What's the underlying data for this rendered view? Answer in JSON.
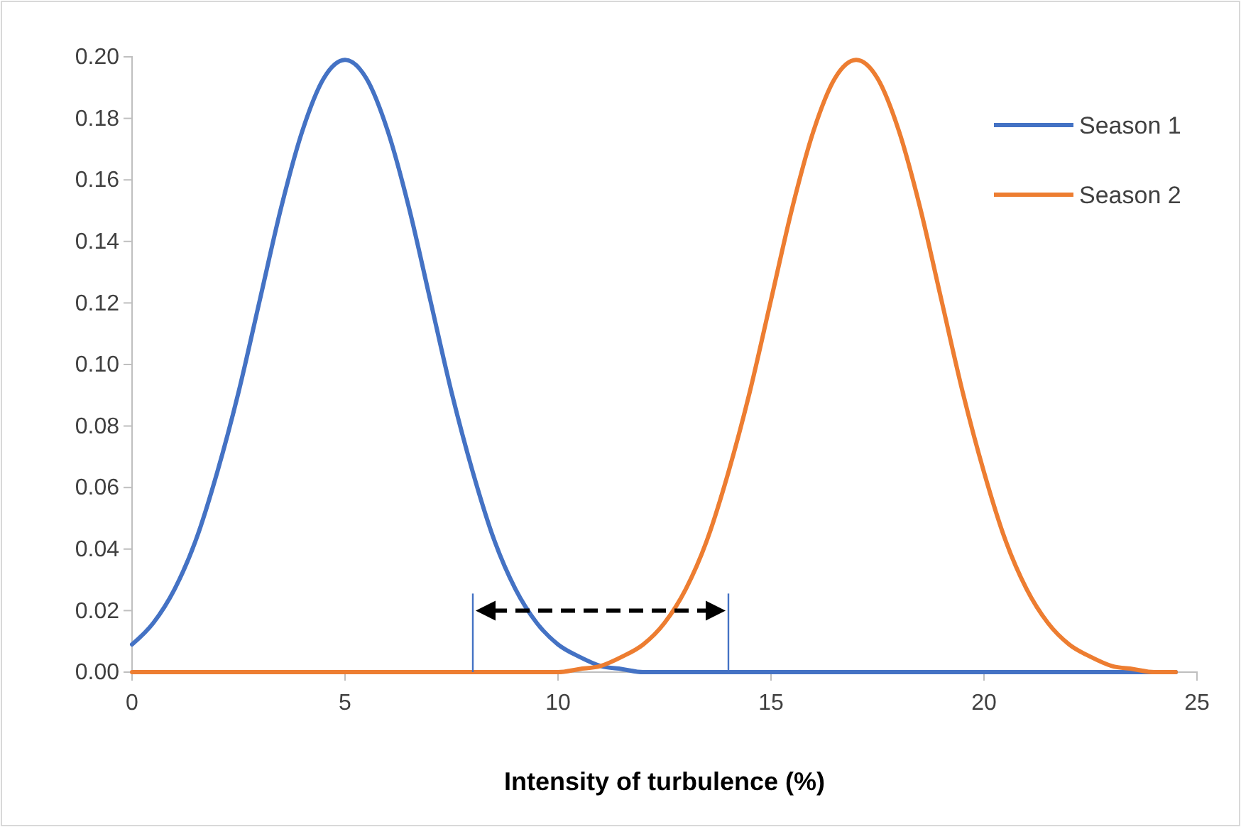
{
  "chart_data": {
    "type": "line",
    "xlabel": "Intensity of turbulence (%)",
    "xlim": [
      0,
      25
    ],
    "xticks": [
      0,
      5,
      10,
      15,
      20,
      25
    ],
    "ylim": [
      0,
      0.2
    ],
    "yticks": [
      {
        "value": 0,
        "label": "0.00"
      },
      {
        "value": 0.02,
        "label": "0.02"
      },
      {
        "value": 0.04,
        "label": "0.04"
      },
      {
        "value": 0.06,
        "label": "0.06"
      },
      {
        "value": 0.08,
        "label": "0.08"
      },
      {
        "value": 0.1,
        "label": "0.10"
      },
      {
        "value": 0.12,
        "label": "0.12"
      },
      {
        "value": 0.14,
        "label": "0.14"
      },
      {
        "value": 0.16,
        "label": "0.16"
      },
      {
        "value": 0.18,
        "label": "0.18"
      },
      {
        "value": 0.2,
        "label": "0.20"
      }
    ],
    "grid": false,
    "legend": "top right",
    "marker": "none",
    "line_style": "solid",
    "ref_lines": [
      {
        "axis": "x",
        "value": 8,
        "color": "#4472c4"
      },
      {
        "axis": "x",
        "value": 14,
        "color": "#4472c4"
      }
    ],
    "series": [
      {
        "name": "Season 1",
        "color": "#4472c4",
        "x": [
          0,
          0.5,
          1,
          1.5,
          2,
          2.5,
          3,
          3.5,
          4,
          4.5,
          5,
          5.5,
          6,
          6.5,
          7,
          7.5,
          8,
          8.5,
          9,
          9.5,
          10,
          10.5,
          11,
          11.5,
          12,
          15,
          20,
          24.5
        ],
        "values": [
          0.009,
          0.016,
          0.027,
          0.043,
          0.065,
          0.091,
          0.121,
          0.151,
          0.176,
          0.193,
          0.199,
          0.193,
          0.176,
          0.151,
          0.121,
          0.091,
          0.065,
          0.043,
          0.027,
          0.016,
          0.009,
          0.005,
          0.002,
          0.001,
          0,
          0,
          0,
          0
        ]
      },
      {
        "name": "Season 2",
        "color": "#ed7d31",
        "x": [
          0,
          5,
          10,
          10.5,
          11,
          11.5,
          12,
          12.5,
          13,
          13.5,
          14,
          14.5,
          15,
          15.5,
          16,
          16.5,
          17,
          17.5,
          18,
          18.5,
          19,
          19.5,
          20,
          20.5,
          21,
          21.5,
          22,
          22.5,
          23,
          23.5,
          24,
          24.5
        ],
        "values": [
          0,
          0,
          0,
          0.001,
          0.002,
          0.005,
          0.009,
          0.016,
          0.027,
          0.043,
          0.065,
          0.091,
          0.121,
          0.151,
          0.176,
          0.193,
          0.199,
          0.193,
          0.176,
          0.151,
          0.121,
          0.091,
          0.065,
          0.043,
          0.027,
          0.016,
          0.009,
          0.005,
          0.002,
          0.001,
          0,
          0
        ]
      }
    ]
  }
}
